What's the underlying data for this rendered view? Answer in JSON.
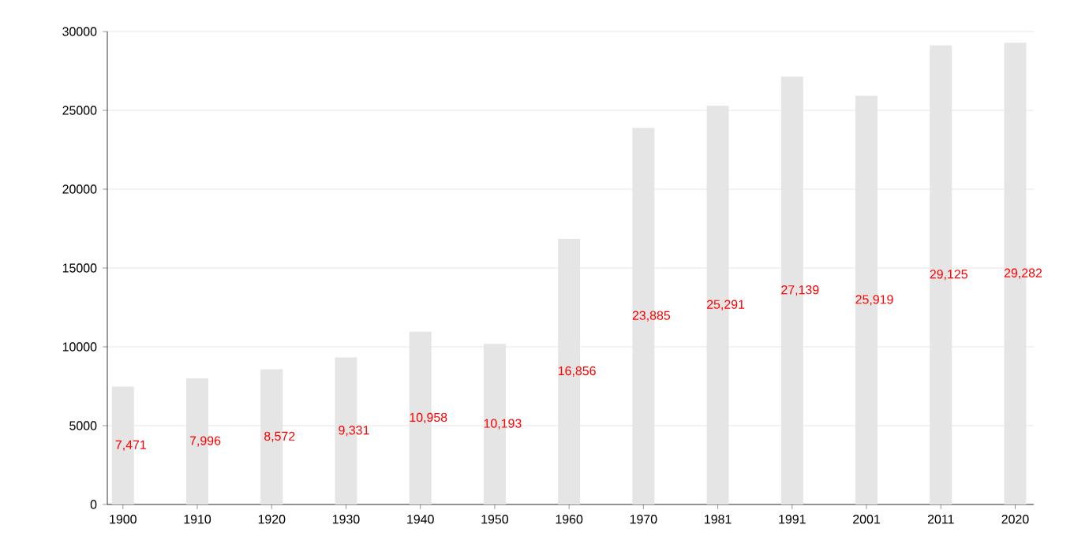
{
  "chart_data": {
    "type": "bar",
    "categories": [
      "1900",
      "1910",
      "1920",
      "1930",
      "1940",
      "1950",
      "1960",
      "1970",
      "1981",
      "1991",
      "2001",
      "2011",
      "2020"
    ],
    "values": [
      7471,
      7996,
      8572,
      9331,
      10958,
      10193,
      16856,
      23885,
      25291,
      27139,
      25919,
      29125,
      29282
    ],
    "value_labels": [
      "7,471",
      "7,996",
      "8,572",
      "9,331",
      "10,958",
      "10,193",
      "16,856",
      "23,885",
      "25,291",
      "27,139",
      "25,919",
      "29,125",
      "29,282"
    ],
    "color": "#e5e5e5",
    "ylim": [
      0,
      30000
    ],
    "yticks": [
      0,
      5000,
      10000,
      15000,
      20000,
      25000,
      30000
    ],
    "grid": "y"
  }
}
